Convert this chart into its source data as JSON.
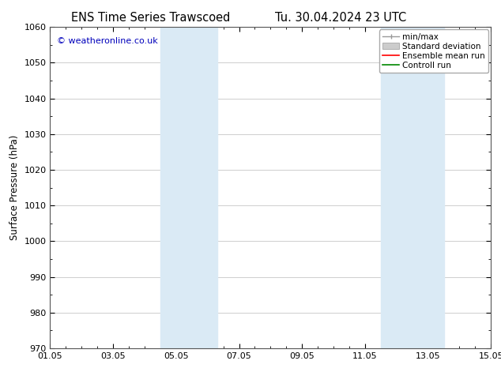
{
  "title_left": "ENS Time Series Trawscoed",
  "title_right": "Tu. 30.04.2024 23 UTC",
  "ylabel": "Surface Pressure (hPa)",
  "ylim": [
    970,
    1060
  ],
  "yticks": [
    970,
    980,
    990,
    1000,
    1010,
    1020,
    1030,
    1040,
    1050,
    1060
  ],
  "xlim_start": 0,
  "xlim_end": 14,
  "xtick_positions": [
    0,
    2,
    4,
    6,
    8,
    10,
    12,
    14
  ],
  "xtick_labels": [
    "01.05",
    "03.05",
    "05.05",
    "07.05",
    "09.05",
    "11.05",
    "13.05",
    "15.05"
  ],
  "shaded_bands": [
    {
      "xmin": 3.5,
      "xmax": 5.3
    },
    {
      "xmin": 10.5,
      "xmax": 12.5
    }
  ],
  "shade_color": "#daeaf5",
  "watermark": "© weatheronline.co.uk",
  "watermark_color": "#0000bb",
  "legend_labels": [
    "min/max",
    "Standard deviation",
    "Ensemble mean run",
    "Controll run"
  ],
  "legend_colors_handle": [
    "#999999",
    "#cccccc",
    "#ff0000",
    "#008800"
  ],
  "background_color": "#ffffff",
  "plot_bg_color": "#ffffff",
  "grid_color": "#bbbbbb",
  "title_fontsize": 10.5,
  "tick_fontsize": 8,
  "ylabel_fontsize": 8.5,
  "legend_fontsize": 7.5
}
